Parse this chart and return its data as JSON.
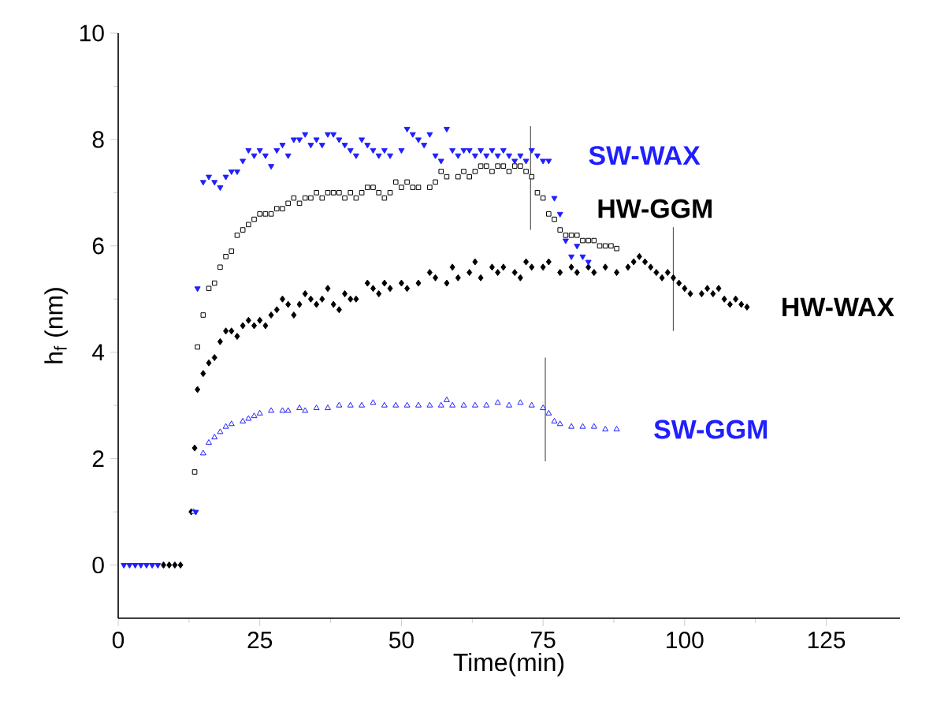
{
  "chart_data": {
    "type": "scatter",
    "xlabel": "Time(min)",
    "ylabel": "h$_{f}$ (nm)",
    "xlim": [
      0,
      138
    ],
    "xticks": [
      0,
      25,
      50,
      75,
      100,
      125
    ],
    "ylim": [
      -1,
      10
    ],
    "yticks": [
      0,
      2,
      4,
      6,
      8,
      10
    ],
    "grid": false,
    "series": [
      {
        "name": "HW-GGM",
        "color": "#000000",
        "marker": "square",
        "x": [
          13.5,
          14,
          15,
          16,
          17,
          18,
          19,
          20,
          21,
          22,
          23,
          24,
          25,
          26,
          27,
          28,
          29,
          30,
          31,
          32,
          33,
          34,
          35,
          36,
          37,
          38,
          39,
          40,
          41,
          42,
          43,
          44,
          45,
          46,
          47,
          48,
          49,
          50,
          51,
          52,
          53,
          55,
          56,
          57,
          58,
          60,
          61,
          62,
          63,
          64,
          65,
          66,
          67,
          68,
          69,
          70,
          71,
          72,
          73,
          74,
          75,
          76,
          77,
          78,
          79,
          80,
          81,
          82,
          83,
          84,
          85,
          86,
          87,
          88
        ],
        "values": [
          1.75,
          4.1,
          4.7,
          5.2,
          5.3,
          5.6,
          5.8,
          5.9,
          6.2,
          6.3,
          6.4,
          6.5,
          6.6,
          6.6,
          6.6,
          6.7,
          6.7,
          6.8,
          6.9,
          6.8,
          6.9,
          6.9,
          7.0,
          6.9,
          7.0,
          7.0,
          7.0,
          6.9,
          7.0,
          6.9,
          7.0,
          7.1,
          7.1,
          7.0,
          6.9,
          7.0,
          7.2,
          7.1,
          7.2,
          7.1,
          7.1,
          7.1,
          7.2,
          7.4,
          7.3,
          7.3,
          7.4,
          7.3,
          7.4,
          7.5,
          7.5,
          7.4,
          7.5,
          7.5,
          7.4,
          7.5,
          7.5,
          7.4,
          7.3,
          7.0,
          6.9,
          6.6,
          6.5,
          6.3,
          6.2,
          6.2,
          6.2,
          6.1,
          6.1,
          6.1,
          6.0,
          6.0,
          6.0,
          5.95
        ]
      },
      {
        "name": "HW-WAX",
        "color": "#000000",
        "marker": "diamond",
        "x": [
          8,
          9,
          10,
          11,
          12.9,
          13.5,
          14,
          15,
          16,
          17,
          18,
          19,
          20,
          21,
          22,
          23,
          24,
          25,
          26,
          27,
          28,
          29,
          30,
          31,
          32,
          33,
          34,
          35,
          36,
          37,
          38,
          39,
          40,
          41,
          42,
          44,
          45,
          46,
          47,
          48,
          50,
          51,
          53,
          55,
          56,
          58,
          59,
          60,
          62,
          63,
          64,
          66,
          67,
          68,
          70,
          71,
          72,
          73,
          75,
          76,
          78,
          80,
          81,
          83,
          84,
          86,
          88,
          90,
          91,
          92,
          93,
          94,
          95,
          96,
          97,
          98,
          99,
          100,
          101,
          103,
          104,
          105,
          106,
          107,
          108,
          109,
          110,
          111
        ],
        "values": [
          0,
          0,
          0,
          0,
          1.0,
          2.2,
          3.3,
          3.6,
          3.8,
          3.9,
          4.2,
          4.4,
          4.4,
          4.3,
          4.5,
          4.6,
          4.5,
          4.6,
          4.5,
          4.7,
          4.8,
          5.0,
          4.9,
          4.7,
          4.9,
          5.1,
          5.0,
          4.9,
          5.0,
          5.2,
          4.9,
          4.8,
          5.1,
          5.0,
          5.0,
          5.3,
          5.2,
          5.1,
          5.3,
          5.2,
          5.3,
          5.2,
          5.3,
          5.5,
          5.4,
          5.3,
          5.6,
          5.4,
          5.5,
          5.7,
          5.4,
          5.6,
          5.5,
          5.6,
          5.5,
          5.4,
          5.7,
          5.6,
          5.6,
          5.7,
          5.5,
          5.6,
          5.5,
          5.6,
          5.5,
          5.6,
          5.5,
          5.6,
          5.7,
          5.8,
          5.7,
          5.6,
          5.5,
          5.4,
          5.5,
          5.4,
          5.3,
          5.2,
          5.1,
          5.1,
          5.2,
          5.1,
          5.2,
          5.0,
          4.9,
          5.0,
          4.9,
          4.85
        ]
      },
      {
        "name": "SW-GGM",
        "color": "#1f1fff",
        "marker": "triangle",
        "x": [
          13.3,
          15,
          16,
          17,
          18,
          19,
          20,
          22,
          23,
          24,
          25,
          27,
          29,
          30,
          32,
          33,
          35,
          37,
          39,
          41,
          43,
          45,
          47,
          49,
          51,
          53,
          55,
          57,
          58,
          59,
          61,
          63,
          65,
          67,
          69,
          71,
          73,
          75,
          76,
          77,
          78,
          80,
          82,
          84,
          86,
          88
        ],
        "values": [
          1.0,
          2.1,
          2.3,
          2.4,
          2.5,
          2.6,
          2.65,
          2.7,
          2.75,
          2.8,
          2.85,
          2.9,
          2.9,
          2.9,
          2.95,
          2.9,
          2.95,
          2.95,
          3.0,
          3.0,
          3.0,
          3.05,
          3.0,
          3.0,
          3.0,
          3.0,
          3.0,
          3.0,
          3.1,
          3.0,
          3.0,
          3.0,
          3.0,
          3.05,
          3.0,
          3.05,
          3.0,
          2.95,
          2.85,
          2.7,
          2.65,
          2.6,
          2.6,
          2.6,
          2.55,
          2.55
        ]
      },
      {
        "name": "SW-WAX",
        "color": "#1f1fff",
        "marker": "triangle",
        "x": [
          1,
          2,
          3,
          4,
          5,
          6,
          7,
          13.7,
          14,
          15,
          16,
          17,
          18,
          19,
          20,
          21,
          22,
          23,
          24,
          25,
          26,
          27,
          28,
          29,
          30,
          31,
          32,
          33,
          34,
          35,
          36,
          37,
          38,
          39,
          40,
          41,
          42,
          43,
          44,
          45,
          46,
          47,
          48,
          50,
          51,
          52,
          53,
          54,
          55,
          56,
          57,
          58,
          59,
          60,
          61,
          62,
          63,
          64,
          65,
          66,
          67,
          68,
          69,
          70,
          71,
          72,
          73,
          74,
          75,
          76,
          77,
          78,
          79,
          80,
          81,
          82,
          83
        ],
        "values": [
          0,
          0,
          0,
          0,
          0,
          0,
          0,
          1.0,
          5.2,
          7.2,
          7.3,
          7.2,
          7.1,
          7.3,
          7.4,
          7.4,
          7.6,
          7.8,
          7.7,
          7.8,
          7.7,
          7.5,
          7.8,
          7.9,
          7.7,
          8.0,
          8.0,
          8.1,
          7.9,
          8.0,
          7.9,
          8.1,
          8.1,
          8.0,
          7.9,
          7.8,
          7.7,
          8.0,
          7.9,
          7.8,
          7.7,
          7.8,
          7.7,
          7.8,
          8.2,
          8.1,
          8.0,
          7.9,
          8.1,
          7.7,
          7.6,
          8.2,
          7.8,
          7.7,
          7.8,
          7.8,
          7.7,
          7.8,
          7.7,
          7.8,
          7.7,
          7.8,
          7.7,
          7.6,
          7.7,
          7.6,
          7.8,
          7.7,
          7.6,
          7.6,
          6.9,
          6.6,
          6.1,
          5.8,
          6.0,
          5.8,
          5.7
        ]
      }
    ],
    "ref_lines": [
      {
        "axis": "x",
        "value": 72.8,
        "color": "#555555"
      },
      {
        "axis": "x",
        "value": 98,
        "color": "#555555"
      },
      {
        "axis": "x",
        "value": 75.4,
        "color": "#555555"
      }
    ]
  }
}
